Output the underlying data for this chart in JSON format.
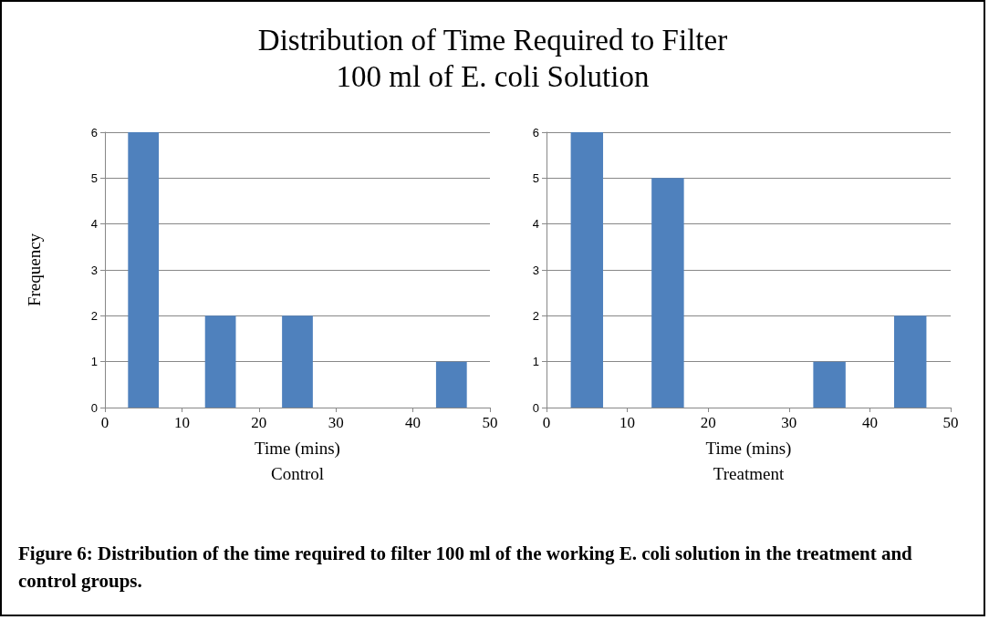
{
  "chart_data": [
    {
      "type": "bar",
      "title": "Distribution of Time Required to Filter\n100 ml of E. coli Solution",
      "xlabel": "Time (mins)\nControl",
      "ylabel": "Frequency",
      "x": [
        5,
        15,
        25,
        35,
        45
      ],
      "values": [
        6,
        2,
        2,
        0,
        1
      ],
      "color": "#4f81bd",
      "xlim": [
        0,
        50
      ],
      "xticks": [
        0,
        10,
        20,
        30,
        40,
        50
      ],
      "ylim": [
        0,
        6
      ],
      "yticks": [
        0,
        1,
        2,
        3,
        4,
        5,
        6
      ],
      "grid": "y",
      "annotations": [
        "Figure 6: Distribution of the time required to filter 100 ml of the working E. coli solution in the treatment and control groups."
      ]
    },
    {
      "type": "bar",
      "xlabel": "Time (mins)\nTreatment",
      "x": [
        5,
        15,
        25,
        35,
        45
      ],
      "values": [
        6,
        5,
        0,
        1,
        2
      ],
      "color": "#4f81bd",
      "xlim": [
        0,
        50
      ],
      "xticks": [
        0,
        10,
        20,
        30,
        40,
        50
      ],
      "ylim": [
        0,
        6
      ],
      "yticks": [
        0,
        1,
        2,
        3,
        4,
        5,
        6
      ],
      "grid": "y"
    }
  ]
}
